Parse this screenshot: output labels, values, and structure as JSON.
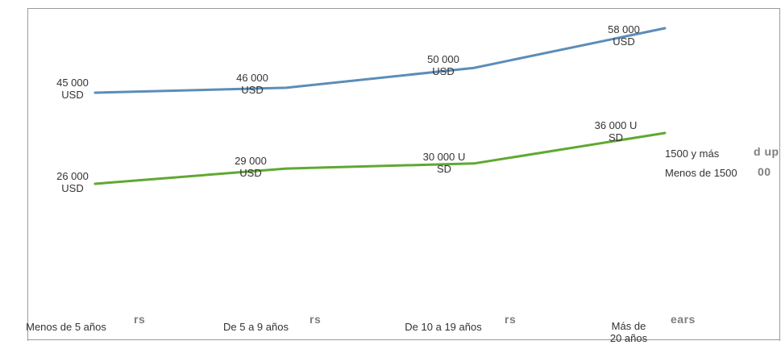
{
  "chart_data": {
    "type": "line",
    "categories": [
      "Menos de 5 años",
      "De 5 a 9 años",
      "De 10 a 19 años",
      "Más de 20 años"
    ],
    "series": [
      {
        "name": "1500 y más",
        "color": "#5b8db8",
        "values": [
          45000,
          46000,
          50000,
          58000
        ],
        "labels": [
          "45 000\nUSD",
          "46 000\nUSD",
          "50 000\nUSD",
          "58 000\nUSD"
        ]
      },
      {
        "name": "Menos de 1500",
        "color": "#5fa832",
        "values": [
          26000,
          29000,
          30000,
          36000
        ],
        "labels": [
          "26 000\nUSD",
          "29 000\nUSD",
          "30 000 U\nSD",
          "36 000 U\nSD"
        ]
      }
    ],
    "title": "",
    "xlabel": "",
    "ylabel": "",
    "grid": false,
    "legend_position": "right"
  },
  "ghost_text": {
    "legend_high": "d up",
    "legend_low": "00",
    "x_fragments": [
      "rs",
      "rs",
      "rs",
      "ears"
    ]
  }
}
